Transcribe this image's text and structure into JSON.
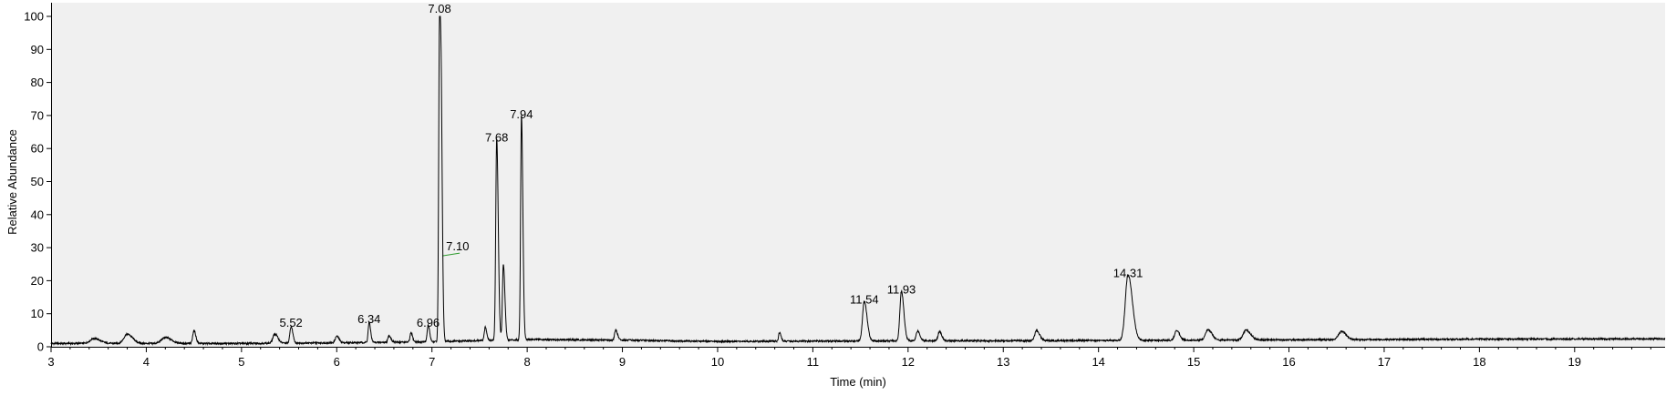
{
  "chart_data": {
    "type": "line",
    "title": "",
    "xlabel": "Time (min)",
    "ylabel": "Relative Abundance",
    "xlim": [
      3.0,
      19.95
    ],
    "ylim": [
      0,
      100
    ],
    "xticks": [
      3,
      4,
      5,
      6,
      7,
      8,
      9,
      10,
      11,
      12,
      13,
      14,
      15,
      16,
      17,
      18,
      19
    ],
    "yticks": [
      0,
      10,
      20,
      30,
      40,
      50,
      60,
      70,
      80,
      90,
      100
    ],
    "grid": false,
    "colors": {
      "plot_background": "#f0f0f0",
      "trace": "#000000",
      "annotation_leader": "#2e9b2e",
      "axis": "#000000"
    },
    "baseline": [
      [
        3.0,
        1.0
      ],
      [
        4.0,
        1.0
      ],
      [
        5.0,
        1.0
      ],
      [
        6.0,
        1.2
      ],
      [
        7.0,
        1.5
      ],
      [
        8.0,
        2.2
      ],
      [
        9.0,
        2.0
      ],
      [
        10.0,
        1.6
      ],
      [
        11.0,
        1.7
      ],
      [
        12.0,
        1.8
      ],
      [
        13.0,
        1.8
      ],
      [
        14.0,
        1.9
      ],
      [
        15.0,
        2.0
      ],
      [
        16.0,
        2.1
      ],
      [
        17.0,
        2.2
      ],
      [
        18.0,
        2.3
      ],
      [
        19.95,
        2.4
      ]
    ],
    "peaks": [
      {
        "rt": 3.45,
        "height": 1.5,
        "width": 0.04
      },
      {
        "rt": 3.8,
        "height": 2.8,
        "width": 0.035
      },
      {
        "rt": 4.2,
        "height": 1.8,
        "width": 0.04
      },
      {
        "rt": 4.5,
        "height": 4.0,
        "width": 0.012
      },
      {
        "rt": 5.35,
        "height": 2.8,
        "width": 0.02
      },
      {
        "rt": 5.52,
        "height": 5.0,
        "width": 0.012,
        "label": "5.52"
      },
      {
        "rt": 6.0,
        "height": 2.0,
        "width": 0.015
      },
      {
        "rt": 6.34,
        "height": 6.0,
        "width": 0.01,
        "label": "6.34"
      },
      {
        "rt": 6.55,
        "height": 2.0,
        "width": 0.012
      },
      {
        "rt": 6.78,
        "height": 2.8,
        "width": 0.01
      },
      {
        "rt": 6.96,
        "height": 5.0,
        "width": 0.01,
        "label": "6.96"
      },
      {
        "rt": 7.08,
        "height": 100.0,
        "width": 0.009,
        "label": "7.08"
      },
      {
        "rt": 7.1,
        "height": 39.0,
        "width": 0.008
      },
      {
        "rt": 7.56,
        "height": 4.0,
        "width": 0.01
      },
      {
        "rt": 7.68,
        "height": 61.0,
        "width": 0.01,
        "label": "7.68"
      },
      {
        "rt": 7.75,
        "height": 23.0,
        "width": 0.01
      },
      {
        "rt": 7.94,
        "height": 68.0,
        "width": 0.009,
        "label": "7.94"
      },
      {
        "rt": 8.93,
        "height": 3.0,
        "width": 0.012
      },
      {
        "rt": 10.65,
        "height": 2.6,
        "width": 0.01
      },
      {
        "rt": 11.54,
        "height": 12.0,
        "width": 0.018,
        "label": "11.54"
      },
      {
        "rt": 11.93,
        "height": 15.0,
        "width": 0.016,
        "label": "11.93"
      },
      {
        "rt": 12.1,
        "height": 3.0,
        "width": 0.015
      },
      {
        "rt": 12.33,
        "height": 2.8,
        "width": 0.015
      },
      {
        "rt": 13.35,
        "height": 3.0,
        "width": 0.02
      },
      {
        "rt": 14.31,
        "height": 20.0,
        "width": 0.028,
        "label": "14.31"
      },
      {
        "rt": 14.82,
        "height": 3.0,
        "width": 0.02
      },
      {
        "rt": 15.15,
        "height": 3.2,
        "width": 0.025
      },
      {
        "rt": 15.55,
        "height": 3.0,
        "width": 0.03
      },
      {
        "rt": 16.55,
        "height": 2.5,
        "width": 0.03
      }
    ],
    "annotations": [
      {
        "text": "5.52",
        "rt": 5.52,
        "y": 5.0
      },
      {
        "text": "6.34",
        "rt": 6.34,
        "y": 6.0
      },
      {
        "text": "6.96",
        "rt": 6.96,
        "y": 5.0
      },
      {
        "text": "7.08",
        "rt": 7.08,
        "y": 100.0
      },
      {
        "text": "7.10",
        "rt": 7.1,
        "y": 27.5
      },
      {
        "text": "7.68",
        "rt": 7.68,
        "y": 61.0
      },
      {
        "text": "7.94",
        "rt": 7.94,
        "y": 68.0
      },
      {
        "text": "11.54",
        "rt": 11.54,
        "y": 12.0
      },
      {
        "text": "11.93",
        "rt": 11.93,
        "y": 15.0
      },
      {
        "text": "14.31",
        "rt": 14.31,
        "y": 20.0
      }
    ]
  }
}
